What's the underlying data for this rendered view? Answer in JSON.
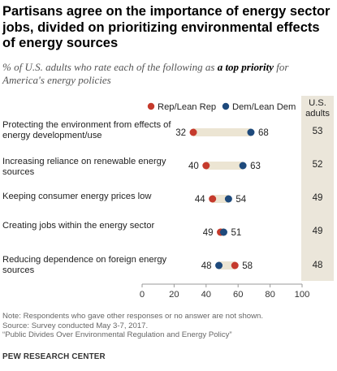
{
  "title": "Partisans agree on the importance of energy sector jobs, divided on prioritizing environmental effects of energy sources",
  "subtitle": {
    "pre": "% of U.S. adults who rate each of the following as ",
    "bold": "a top priority",
    "post": " for America's energy policies"
  },
  "adults_header": "U.S. adults",
  "colors": {
    "rep": "#c53a2c",
    "dem": "#1e4a7c",
    "connector": "#ece5d3"
  },
  "footnote": {
    "note": "Note: Respondents who gave other responses or no answer are not shown.",
    "source": "Source: Survey conducted May 3-7, 2017.",
    "report": "“Public Divides Over Environmental Regulation and Energy Policy”"
  },
  "org": "PEW RESEARCH CENTER",
  "chart_data": {
    "type": "dot",
    "title": "Partisans agree on the importance of energy sector jobs, divided on prioritizing environmental effects of energy sources",
    "xlim": [
      0,
      100
    ],
    "xticks": [
      0,
      20,
      40,
      60,
      80,
      100
    ],
    "legend_position": "top",
    "categories": [
      "Protecting the environment from effects of energy development/use",
      "Increasing reliance on renewable energy sources",
      "Keeping consumer energy prices low",
      "Creating jobs within the energy sector",
      "Reducing dependence on foreign energy sources"
    ],
    "series": [
      {
        "name": "Rep/Lean Rep",
        "color": "#c53a2c",
        "values": [
          32,
          40,
          44,
          49,
          58
        ]
      },
      {
        "name": "Dem/Lean Dem",
        "color": "#1e4a7c",
        "values": [
          68,
          63,
          54,
          51,
          48
        ]
      }
    ],
    "us_adults": [
      53,
      52,
      49,
      49,
      48
    ]
  }
}
